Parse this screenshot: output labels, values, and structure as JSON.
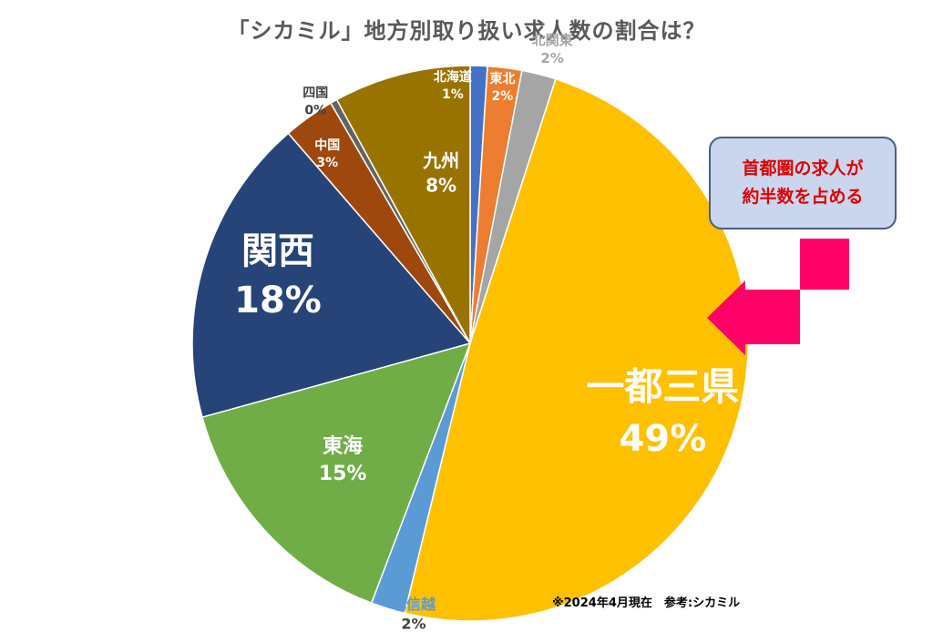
{
  "chart_data": {
    "type": "pie",
    "title": "「シカミル」地方別取り扱い求人数の割合は？",
    "slices": [
      {
        "label": "北海道",
        "value": 1,
        "display": "1%",
        "color": "#4472c4"
      },
      {
        "label": "東北",
        "value": 2,
        "display": "2%",
        "color": "#ed7d31"
      },
      {
        "label": "北関東",
        "value": 2,
        "display": "2%",
        "color": "#a5a5a5"
      },
      {
        "label": "一都三県",
        "value": 49,
        "display": "49%",
        "color": "#ffc000"
      },
      {
        "label": "北信越",
        "value": 2,
        "display": "2%",
        "color": "#5b9bd5"
      },
      {
        "label": "東海",
        "value": 15,
        "display": "15%",
        "color": "#70ad47"
      },
      {
        "label": "関西",
        "value": 18,
        "display": "18%",
        "color": "#264478"
      },
      {
        "label": "中国",
        "value": 3,
        "display": "3%",
        "color": "#9e480e"
      },
      {
        "label": "四国",
        "value": 0.4,
        "display": "0%",
        "color": "#636363"
      },
      {
        "label": "九州",
        "value": 8,
        "display": "8%",
        "color": "#997300"
      }
    ]
  },
  "callout": {
    "line1": "首都圏の求人が",
    "line2": "約半数を占める",
    "arrow_color": "#ff0066"
  },
  "footnote": "※2024年4月現在　参考:シカミル"
}
